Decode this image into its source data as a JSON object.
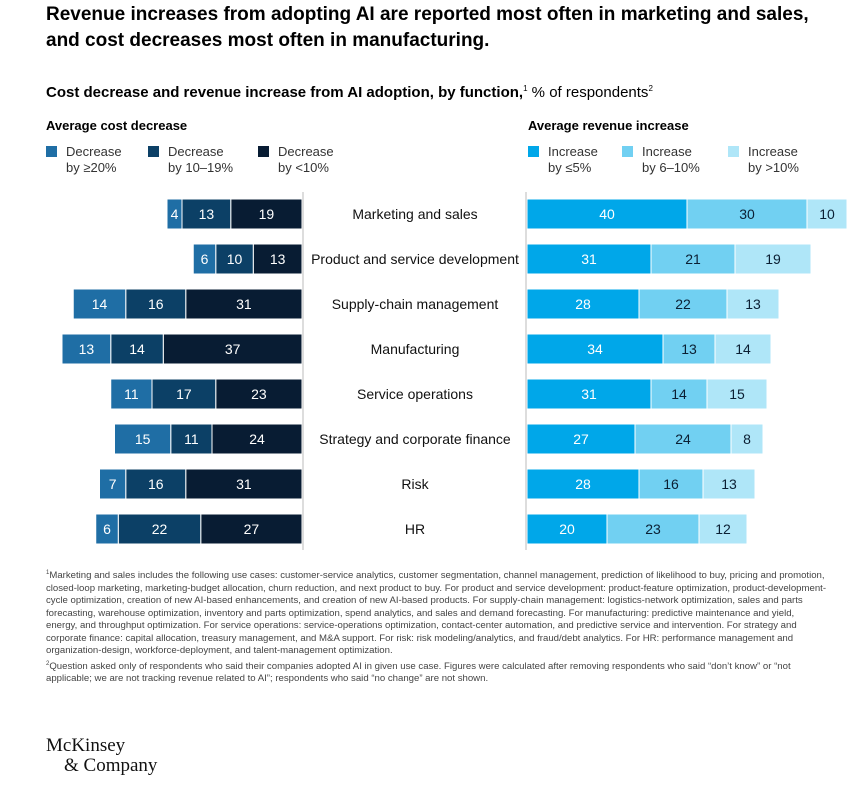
{
  "headline": "Revenue increases from adopting AI are reported most often in marketing and sales, and cost decreases most often in manufacturing.",
  "subtitle": {
    "bold": "Cost decrease and revenue increase from AI adoption, by function,",
    "sup1": "1",
    "rest": " % of respondents",
    "sup2": "2"
  },
  "chart_data": {
    "type": "bar",
    "orientation": "horizontal-diverging-stacked",
    "categories": [
      "Marketing and sales",
      "Product and service development",
      "Supply-chain management",
      "Manufacturing",
      "Service operations",
      "Strategy and corporate finance",
      "Risk",
      "HR"
    ],
    "cost": {
      "title": "Average cost decrease",
      "series": [
        {
          "name": "Decrease by ≥20%",
          "label_line1": "Decrease",
          "label_line2": "by ≥20%",
          "color": "#1f6ea5",
          "values": [
            4,
            6,
            14,
            13,
            11,
            15,
            7,
            6
          ]
        },
        {
          "name": "Decrease by 10–19%",
          "label_line1": "Decrease",
          "label_line2": "by 10–19%",
          "color": "#0c4066",
          "values": [
            13,
            10,
            16,
            14,
            17,
            11,
            16,
            22
          ]
        },
        {
          "name": "Decrease by <10%",
          "label_line1": "Decrease",
          "label_line2": "by <10%",
          "color": "#081c33",
          "values": [
            19,
            13,
            31,
            37,
            23,
            24,
            31,
            27
          ]
        }
      ]
    },
    "revenue": {
      "title": "Average revenue increase",
      "series": [
        {
          "name": "Increase by ≤5%",
          "label_line1": "Increase",
          "label_line2": "by ≤5%",
          "color": "#00a7e9",
          "values": [
            40,
            31,
            28,
            34,
            31,
            27,
            28,
            20
          ]
        },
        {
          "name": "Increase by 6–10%",
          "label_line1": "Increase",
          "label_line2": "by 6–10%",
          "color": "#71d0f2",
          "values": [
            30,
            21,
            22,
            13,
            14,
            24,
            16,
            23
          ]
        },
        {
          "name": "Increase by >10%",
          "label_line1": "Increase",
          "label_line2": "by >10%",
          "color": "#afe6f8",
          "values": [
            10,
            19,
            13,
            14,
            15,
            8,
            13,
            12
          ]
        }
      ]
    }
  },
  "footnotes": {
    "note1_mark": "1",
    "note1": "Marketing and sales includes the following use cases: customer-service analytics, customer segmentation, channel management, prediction of likelihood to buy, pricing and promotion, closed-loop marketing, marketing-budget allocation, churn reduction, and next product to buy. For product and service development: product-feature optimization, product-development-cycle optimization, creation of new AI-based enhancements, and creation of new AI-based products. For supply-chain management: logistics-network optimization, sales and parts forecasting, warehouse optimization, inventory and parts optimization, spend analytics, and sales and demand forecasting. For manufacturing: predictive maintenance and yield, energy, and throughput optimization. For service operations: service-operations optimization, contact-center automation, and predictive service and intervention. For strategy and corporate finance: capital allocation, treasury management, and M&A support. For risk: risk modeling/analytics, and fraud/debt analytics. For HR: performance management and organization-design, workforce-deployment, and talent-management optimization.",
    "note2_mark": "2",
    "note2": "Question asked only of respondents who said their companies adopted AI in given use case. Figures were calculated after removing respondents who said “don’t know” or “not applicable; we are not tracking revenue related to AI”; respondents who said “no change” are not shown."
  },
  "logo": {
    "line1": "McKinsey",
    "line2": "& Company"
  }
}
